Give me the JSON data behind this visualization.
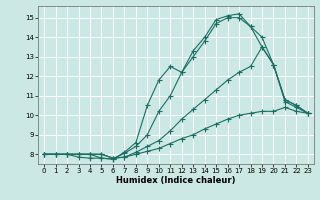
{
  "xlabel": "Humidex (Indice chaleur)",
  "background_color": "#cce8e4",
  "grid_color": "#ffffff",
  "line_color": "#1a6e62",
  "xlim": [
    -0.5,
    23.5
  ],
  "ylim": [
    7.5,
    15.6
  ],
  "xticks": [
    0,
    1,
    2,
    3,
    4,
    5,
    6,
    7,
    8,
    9,
    10,
    11,
    12,
    13,
    14,
    15,
    16,
    17,
    18,
    19,
    20,
    21,
    22,
    23
  ],
  "yticks": [
    8,
    9,
    10,
    11,
    12,
    13,
    14,
    15
  ],
  "line1_x": [
    0,
    1,
    2,
    3,
    4,
    5,
    6,
    7,
    8,
    9,
    10,
    11,
    12,
    13,
    14,
    15,
    16,
    17,
    18,
    19,
    20,
    21,
    22,
    23
  ],
  "line1_y": [
    8.0,
    8.0,
    8.0,
    7.85,
    7.8,
    7.8,
    7.75,
    8.1,
    8.6,
    10.5,
    11.8,
    12.5,
    12.2,
    13.3,
    14.0,
    14.9,
    15.1,
    15.2,
    14.55,
    14.0,
    12.6,
    10.8,
    10.5,
    10.1
  ],
  "line2_x": [
    0,
    1,
    2,
    3,
    4,
    5,
    6,
    7,
    8,
    9,
    10,
    11,
    12,
    13,
    14,
    15,
    16,
    17,
    18,
    19,
    20,
    21,
    22,
    23
  ],
  "line2_y": [
    8.0,
    8.0,
    8.0,
    8.0,
    8.0,
    7.8,
    7.75,
    8.05,
    8.4,
    9.0,
    10.2,
    11.0,
    12.2,
    13.0,
    13.8,
    14.7,
    15.0,
    15.0,
    14.55,
    13.5,
    12.6,
    10.7,
    10.4,
    10.1
  ],
  "line3_x": [
    0,
    1,
    2,
    3,
    4,
    5,
    6,
    7,
    8,
    9,
    10,
    11,
    12,
    13,
    14,
    15,
    16,
    17,
    18,
    19,
    20,
    21,
    22,
    23
  ],
  "line3_y": [
    8.0,
    8.0,
    8.0,
    8.0,
    8.0,
    8.0,
    7.8,
    7.85,
    8.1,
    8.4,
    8.7,
    9.2,
    9.8,
    10.3,
    10.8,
    11.3,
    11.8,
    12.2,
    12.5,
    13.5,
    12.6,
    10.8,
    10.5,
    10.1
  ],
  "line4_x": [
    0,
    1,
    2,
    3,
    4,
    5,
    6,
    7,
    8,
    9,
    10,
    11,
    12,
    13,
    14,
    15,
    16,
    17,
    18,
    19,
    20,
    21,
    22,
    23
  ],
  "line4_y": [
    8.0,
    8.0,
    8.0,
    8.0,
    8.0,
    8.0,
    7.8,
    7.85,
    8.0,
    8.15,
    8.3,
    8.55,
    8.8,
    9.0,
    9.3,
    9.55,
    9.8,
    10.0,
    10.1,
    10.2,
    10.2,
    10.4,
    10.2,
    10.1
  ]
}
